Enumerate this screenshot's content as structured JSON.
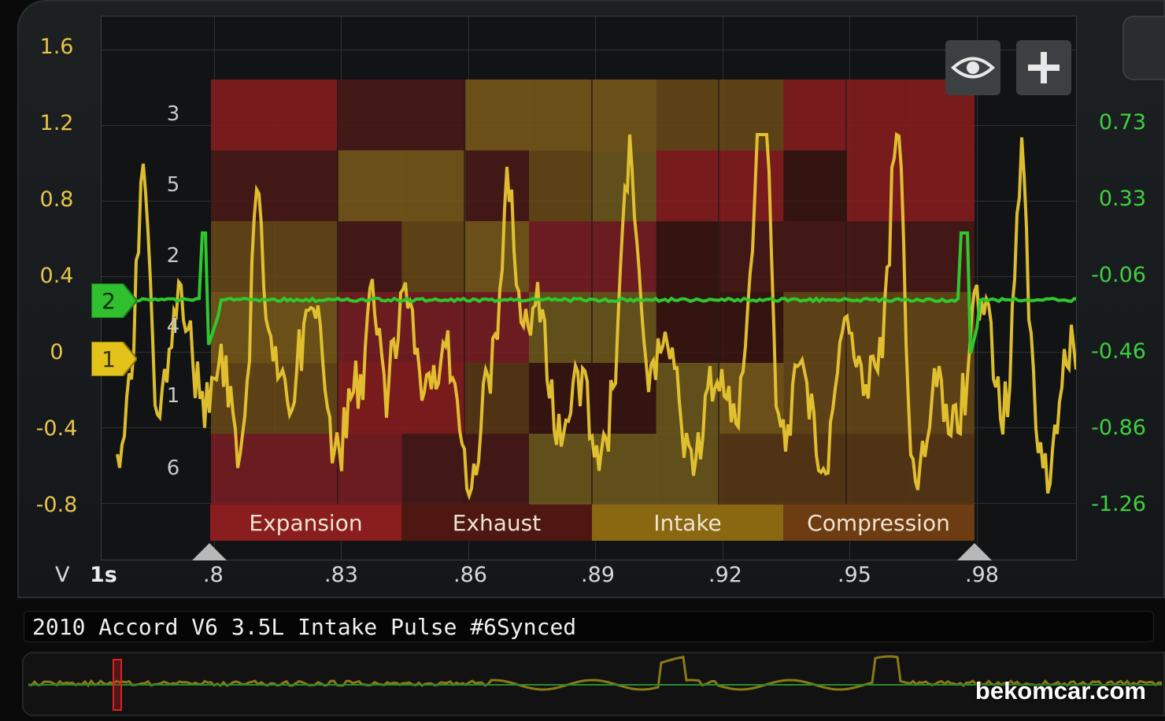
{
  "scope": {
    "left_axis_unit": "V",
    "left_axis_ticks": [
      "1.6",
      "1.2",
      "0.8",
      "0.4",
      "0",
      "-0.4",
      "-0.8"
    ],
    "right_axis_ticks": [
      "0.73",
      "0.33",
      "-0.06",
      "-0.46",
      "-0.86",
      "-1.26"
    ],
    "time_axis_ticks": [
      "1s",
      ".8",
      ".83",
      ".86",
      ".89",
      ".92",
      ".95",
      ".98"
    ],
    "phases": [
      "Expansion",
      "Exhaust",
      "Intake",
      "Compression"
    ],
    "cylinder_labels": [
      "3",
      "5",
      "2",
      "4",
      "1",
      "6"
    ],
    "channel_markers": [
      {
        "id": "2",
        "color": "#2fbf2f",
        "label": "2"
      },
      {
        "id": "1",
        "color": "#e3c21a",
        "label": "1"
      }
    ],
    "toolbar": {
      "eye_icon": "eye-icon",
      "add_icon": "plus-icon"
    }
  },
  "title": "2010 Accord V6 3.5L Intake Pulse #6Synced",
  "watermark": "bekomcar.com",
  "colors": {
    "channel1": "#e8c630",
    "channel2": "#2ec92e",
    "accent_red": "#8a1d1d"
  }
}
